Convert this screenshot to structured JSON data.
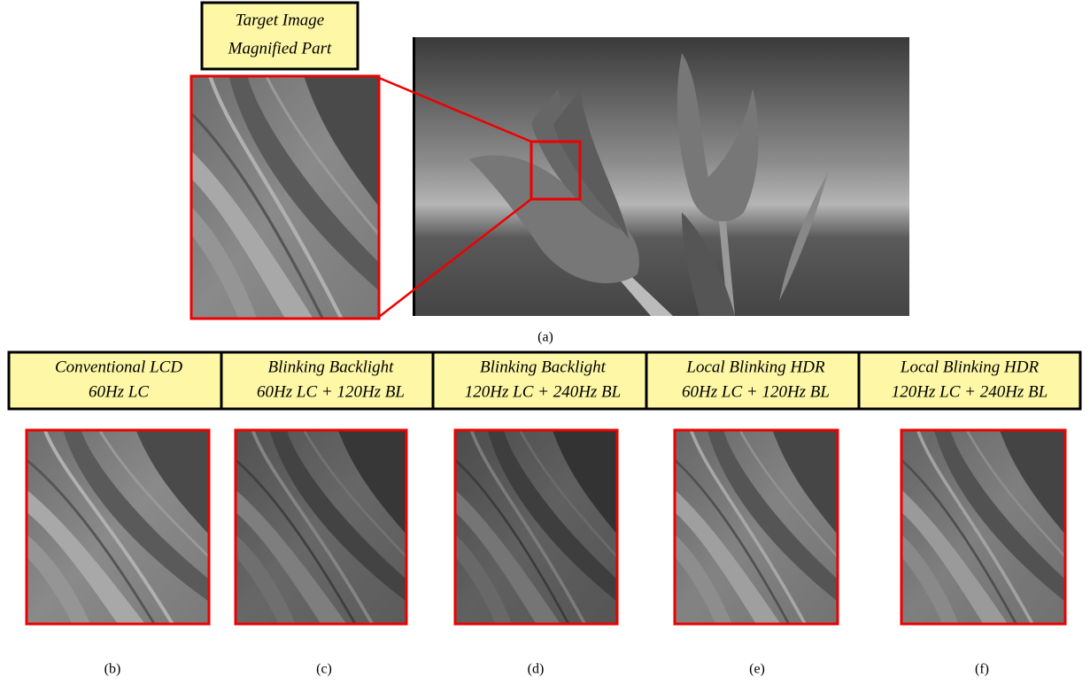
{
  "target": {
    "label": [
      "Target Image",
      "Magnified Part"
    ],
    "caption": "(a)"
  },
  "panels": [
    {
      "label": [
        "Conventional LCD",
        "60Hz LC"
      ],
      "caption": "(b)"
    },
    {
      "label": [
        "Blinking Backlight",
        "60Hz LC + 120Hz BL"
      ],
      "caption": "(c)"
    },
    {
      "label": [
        "Blinking Backlight",
        "120Hz LC + 240Hz BL"
      ],
      "caption": "(d)"
    },
    {
      "label": [
        "Local Blinking HDR",
        "60Hz LC + 120Hz BL"
      ],
      "caption": "(e)"
    },
    {
      "label": [
        "Local Blinking HDR",
        "120Hz LC + 240Hz BL"
      ],
      "caption": "(f)"
    }
  ]
}
